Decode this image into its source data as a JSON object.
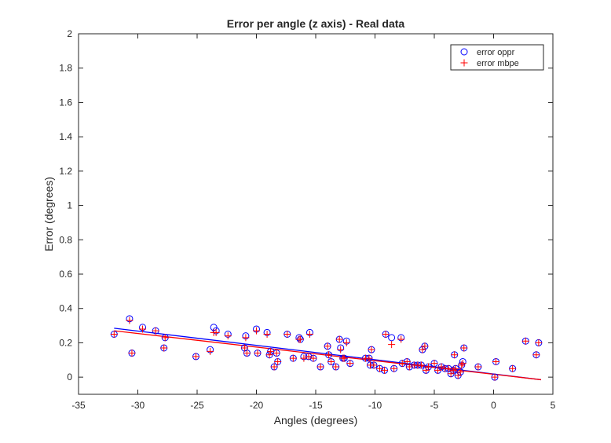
{
  "chart_data": {
    "type": "scatter",
    "title": "Error per angle (z axis) - Real data",
    "xlabel": "Angles (degrees)",
    "ylabel": "Error (degrees)",
    "xlim": [
      -35,
      5
    ],
    "ylim": [
      -0.1,
      2
    ],
    "xticks": [
      -35,
      -30,
      -25,
      -20,
      -15,
      -10,
      -5,
      0,
      5
    ],
    "yticks": [
      0,
      0.2,
      0.4,
      0.6,
      0.8,
      1,
      1.2,
      1.4,
      1.6,
      1.8,
      2
    ],
    "grid": false,
    "legend_position": "top-right",
    "series": [
      {
        "name": "error oppr",
        "marker": "circle",
        "color": "#0000ff",
        "x": [
          -32,
          -30.7,
          -30.5,
          -29.6,
          -28.5,
          -27.8,
          -27.7,
          -25.1,
          -23.9,
          -23.6,
          -23.4,
          -22.4,
          -21.0,
          -20.9,
          -20.8,
          -20.0,
          -19.9,
          -19.1,
          -18.9,
          -18.8,
          -18.5,
          -18.3,
          -18.2,
          -17.4,
          -16.9,
          -16.4,
          -16.3,
          -16.0,
          -15.6,
          -15.5,
          -15.2,
          -14.6,
          -14.0,
          -13.9,
          -13.7,
          -13.3,
          -13.0,
          -12.9,
          -12.7,
          -12.6,
          -12.4,
          -12.1,
          -10.8,
          -10.5,
          -10.4,
          -10.3,
          -10.1,
          -9.6,
          -9.2,
          -9.1,
          -8.6,
          -8.4,
          -7.8,
          -7.7,
          -7.3,
          -7.1,
          -6.7,
          -6.4,
          -6.1,
          -6.0,
          -5.8,
          -5.7,
          -5.5,
          -5.0,
          -4.7,
          -4.4,
          -4.1,
          -3.8,
          -3.6,
          -3.4,
          -3.3,
          -3.2,
          -3.0,
          -2.8,
          -2.7,
          -2.6,
          -2.5,
          -1.3,
          0.1,
          0.2,
          1.6,
          2.7,
          3.6,
          3.8
        ],
        "y": [
          0.25,
          0.34,
          0.14,
          0.29,
          0.27,
          0.17,
          0.23,
          0.12,
          0.16,
          0.29,
          0.27,
          0.25,
          0.17,
          0.24,
          0.14,
          0.28,
          0.14,
          0.26,
          0.13,
          0.15,
          0.06,
          0.14,
          0.09,
          0.25,
          0.11,
          0.23,
          0.22,
          0.12,
          0.12,
          0.26,
          0.11,
          0.06,
          0.18,
          0.13,
          0.09,
          0.06,
          0.22,
          0.17,
          0.11,
          0.11,
          0.21,
          0.08,
          0.11,
          0.11,
          0.07,
          0.16,
          0.07,
          0.05,
          0.04,
          0.25,
          0.23,
          0.05,
          0.23,
          0.08,
          0.09,
          0.06,
          0.07,
          0.07,
          0.07,
          0.16,
          0.18,
          0.04,
          0.06,
          0.08,
          0.04,
          0.06,
          0.05,
          0.05,
          0.02,
          0.04,
          0.13,
          0.05,
          0.01,
          0.03,
          0.07,
          0.09,
          0.17,
          0.06,
          0.0,
          0.09,
          0.05,
          0.21,
          0.13,
          0.2
        ]
      },
      {
        "name": "error mbpe",
        "marker": "plus",
        "color": "#ff0000",
        "x": [
          -32,
          -30.7,
          -30.5,
          -29.6,
          -28.5,
          -27.8,
          -27.7,
          -25.1,
          -23.9,
          -23.6,
          -23.4,
          -22.4,
          -21.0,
          -20.9,
          -20.8,
          -20.0,
          -19.9,
          -19.1,
          -18.9,
          -18.8,
          -18.5,
          -18.3,
          -18.2,
          -17.4,
          -16.9,
          -16.4,
          -16.3,
          -16.0,
          -15.6,
          -15.5,
          -15.2,
          -14.6,
          -14.0,
          -13.9,
          -13.7,
          -13.3,
          -13.0,
          -12.9,
          -12.7,
          -12.6,
          -12.4,
          -12.1,
          -10.8,
          -10.5,
          -10.4,
          -10.3,
          -10.1,
          -9.6,
          -9.2,
          -9.1,
          -8.6,
          -8.4,
          -7.8,
          -7.7,
          -7.3,
          -7.1,
          -6.7,
          -6.4,
          -6.1,
          -6.0,
          -5.8,
          -5.7,
          -5.5,
          -5.0,
          -4.7,
          -4.4,
          -4.1,
          -3.8,
          -3.6,
          -3.4,
          -3.3,
          -3.2,
          -3.0,
          -2.8,
          -2.7,
          -2.6,
          -2.5,
          -1.3,
          0.1,
          0.2,
          1.6,
          2.7,
          3.6,
          3.8
        ],
        "y": [
          0.25,
          0.33,
          0.14,
          0.28,
          0.27,
          0.17,
          0.23,
          0.12,
          0.15,
          0.26,
          0.26,
          0.24,
          0.17,
          0.23,
          0.14,
          0.27,
          0.14,
          0.25,
          0.13,
          0.15,
          0.06,
          0.14,
          0.09,
          0.25,
          0.11,
          0.22,
          0.22,
          0.11,
          0.12,
          0.25,
          0.11,
          0.06,
          0.18,
          0.13,
          0.09,
          0.06,
          0.22,
          0.16,
          0.11,
          0.11,
          0.2,
          0.08,
          0.11,
          0.11,
          0.07,
          0.16,
          0.07,
          0.05,
          0.04,
          0.25,
          0.19,
          0.05,
          0.22,
          0.08,
          0.09,
          0.06,
          0.07,
          0.07,
          0.07,
          0.16,
          0.18,
          0.04,
          0.06,
          0.08,
          0.04,
          0.06,
          0.05,
          0.05,
          0.02,
          0.04,
          0.13,
          0.05,
          0.01,
          0.03,
          0.07,
          0.08,
          0.17,
          0.06,
          0.0,
          0.09,
          0.05,
          0.21,
          0.13,
          0.2
        ]
      }
    ],
    "trend_lines": [
      {
        "color": "#0000ff",
        "x": [
          -32,
          4
        ],
        "y": [
          0.285,
          -0.015
        ]
      },
      {
        "color": "#ff0000",
        "x": [
          -32,
          4
        ],
        "y": [
          0.27,
          -0.015
        ]
      }
    ]
  }
}
